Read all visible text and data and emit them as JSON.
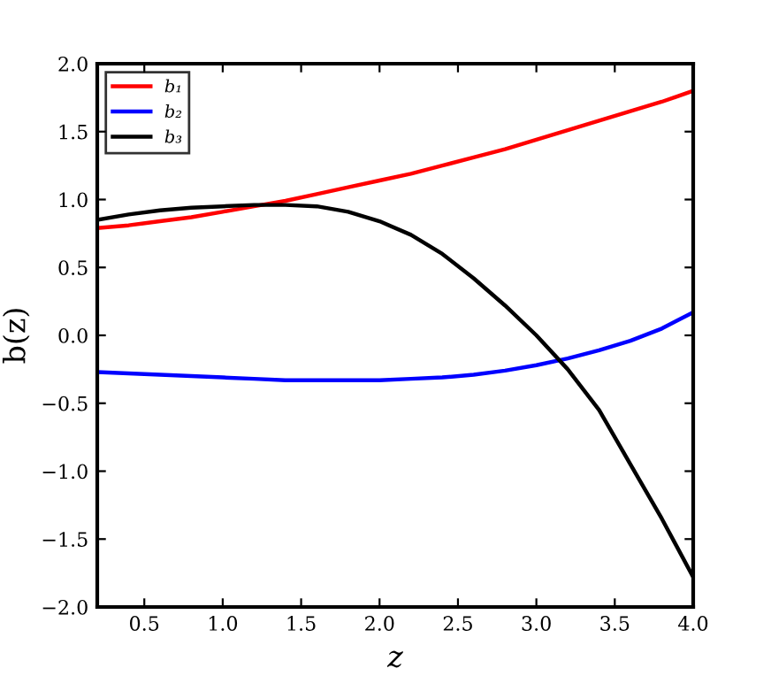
{
  "chart_data": {
    "type": "line",
    "xlabel": "z",
    "ylabel": "b(z)",
    "x": [
      0.2,
      0.4,
      0.6,
      0.8,
      1.0,
      1.2,
      1.4,
      1.6,
      1.8,
      2.0,
      2.2,
      2.4,
      2.6,
      2.8,
      3.0,
      3.2,
      3.4,
      3.6,
      3.8,
      4.0
    ],
    "series": [
      {
        "name": "b₁",
        "color": "#ff0000",
        "values": [
          0.79,
          0.81,
          0.84,
          0.87,
          0.91,
          0.95,
          0.99,
          1.04,
          1.09,
          1.14,
          1.19,
          1.25,
          1.31,
          1.37,
          1.44,
          1.51,
          1.58,
          1.65,
          1.72,
          1.8
        ]
      },
      {
        "name": "b₂",
        "color": "#0000ff",
        "values": [
          -0.27,
          -0.28,
          -0.29,
          -0.3,
          -0.31,
          -0.32,
          -0.33,
          -0.33,
          -0.33,
          -0.33,
          -0.32,
          -0.31,
          -0.29,
          -0.26,
          -0.22,
          -0.17,
          -0.11,
          -0.04,
          0.05,
          0.17
        ]
      },
      {
        "name": "b₃",
        "color": "#000000",
        "values": [
          0.85,
          0.89,
          0.92,
          0.94,
          0.95,
          0.96,
          0.96,
          0.95,
          0.91,
          0.84,
          0.74,
          0.6,
          0.42,
          0.22,
          0.0,
          -0.25,
          -0.55,
          -0.95,
          -1.35,
          -1.78
        ]
      }
    ],
    "xlim": [
      0.2,
      4.0
    ],
    "ylim": [
      -2.0,
      2.0
    ],
    "xticks": [
      0.5,
      {
        "value": 1,
        "label": "1.0"
      },
      1.5,
      {
        "value": 2,
        "label": "2.0"
      },
      2.5,
      {
        "value": 3,
        "label": "3.0"
      },
      3.5,
      {
        "value": 4,
        "label": "4.0"
      }
    ],
    "yticks": [
      {
        "value": -2,
        "label": "−2.0"
      },
      {
        "value": -1.5,
        "label": "−1.5"
      },
      {
        "value": -1,
        "label": "−1.0"
      },
      {
        "value": -0.5,
        "label": "−0.5"
      },
      {
        "value": 0,
        "label": "0.0"
      },
      0.5,
      {
        "value": 1,
        "label": "1.0"
      },
      1.5,
      {
        "value": 2,
        "label": "2.0"
      }
    ],
    "legend": "top left",
    "marker": "none",
    "line_style": "solid"
  }
}
